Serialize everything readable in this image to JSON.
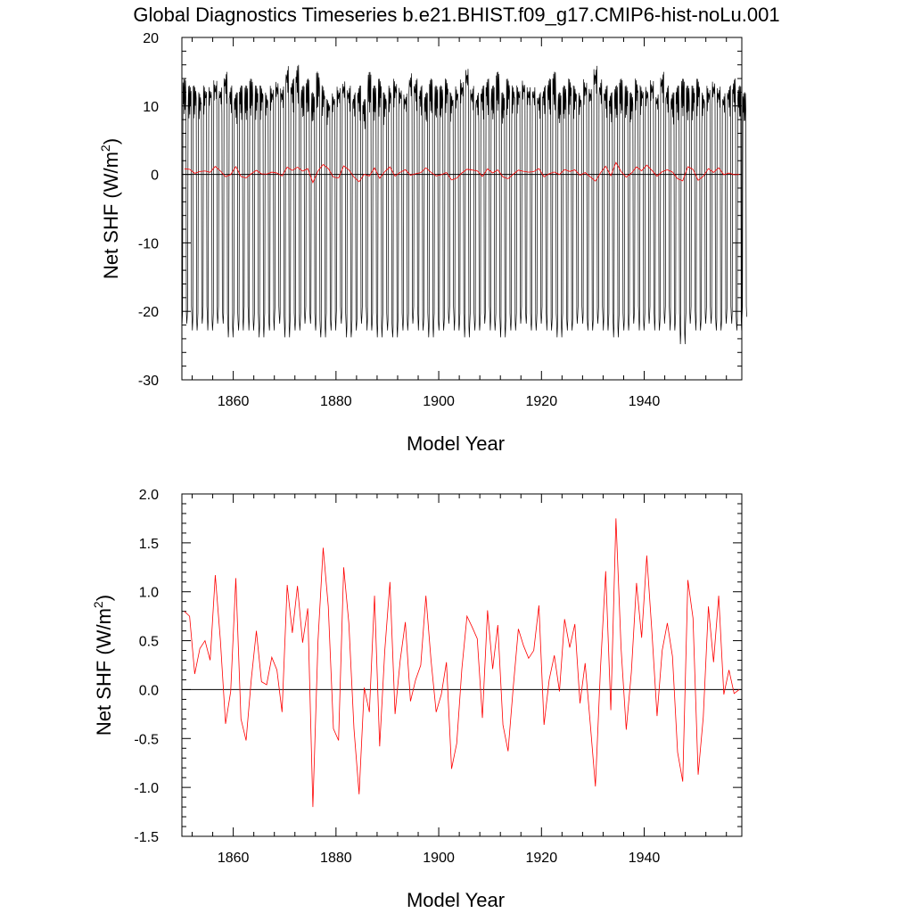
{
  "title": "Global Diagnostics Timeseries b.e21.BHIST.f09_g17.CMIP6-hist-noLu.001",
  "chart_data": [
    {
      "type": "line",
      "xlabel": "Model Year",
      "ylabel": "Net SHF (W/m²)",
      "xlim": [
        1850,
        1959
      ],
      "ylim": [
        -30,
        20
      ],
      "xticks": [
        "1860",
        "1880",
        "1900",
        "1920",
        "1940"
      ],
      "yticks": [
        "-30",
        "-20",
        "-10",
        "0",
        "10",
        "20"
      ],
      "reference_line": 0,
      "series": [
        {
          "color": "#000000",
          "description_values": "monthly values (12 per year), annual range approx -25 to 16",
          "monthly_annual_max": [
            14,
            13,
            13,
            12,
            13,
            13,
            14,
            13,
            15,
            13,
            12,
            13,
            13,
            14,
            13,
            13,
            12,
            13,
            14,
            13,
            16,
            14,
            16,
            13,
            14,
            12,
            15,
            13,
            11,
            12,
            13,
            14,
            13,
            12,
            13,
            11,
            15,
            13,
            14,
            12,
            13,
            14,
            13,
            12,
            15,
            14,
            13,
            12,
            14,
            13,
            13,
            14,
            12,
            13,
            14,
            16,
            13,
            12,
            13,
            14,
            13,
            15,
            12,
            14,
            13,
            13,
            14,
            13,
            13,
            12,
            13,
            14,
            15,
            12,
            13,
            14,
            13,
            12,
            14,
            13,
            16,
            14,
            13,
            12,
            13,
            14,
            13,
            12,
            14,
            13,
            13,
            14,
            12,
            15,
            13,
            12,
            13,
            14,
            13,
            13,
            14,
            12,
            13,
            14,
            13,
            12,
            13,
            14,
            13,
            12
          ],
          "monthly_annual_min": [
            -22,
            -21,
            -23,
            -22,
            -21,
            -23,
            -22,
            -21,
            -22,
            -24,
            -22,
            -23,
            -21,
            -23,
            -22,
            -24,
            -22,
            -23,
            -21,
            -22,
            -24,
            -22,
            -23,
            -22,
            -21,
            -22,
            -23,
            -24,
            -22,
            -23,
            -21,
            -22,
            -24,
            -23,
            -22,
            -21,
            -23,
            -22,
            -24,
            -22,
            -23,
            -24,
            -22,
            -23,
            -22,
            -21,
            -23,
            -22,
            -24,
            -22,
            -23,
            -22,
            -21,
            -23,
            -22,
            -24,
            -22,
            -23,
            -22,
            -21,
            -23,
            -22,
            -24,
            -22,
            -23,
            -22,
            -21,
            -22,
            -23,
            -22,
            -21,
            -23,
            -22,
            -24,
            -22,
            -23,
            -22,
            -21,
            -22,
            -23,
            -22,
            -21,
            -23,
            -22,
            -24,
            -22,
            -23,
            -22,
            -21,
            -23,
            -22,
            -21,
            -23,
            -22,
            -21,
            -23,
            -22,
            -25,
            -22,
            -21,
            -23,
            -22,
            -21,
            -22,
            -23,
            -22,
            -21,
            -22,
            -23,
            -21
          ]
        },
        {
          "color": "#ff0000",
          "description_values": "annual means",
          "values_ref": "annual_mean"
        }
      ]
    },
    {
      "type": "line",
      "xlabel": "Model Year",
      "ylabel": "Net SHF (W/m²)",
      "xlim": [
        1850,
        1959
      ],
      "ylim": [
        -1.5,
        2.0
      ],
      "xticks": [
        "1860",
        "1880",
        "1900",
        "1920",
        "1940"
      ],
      "yticks": [
        "-1.5",
        "-1.0",
        "-0.5",
        "0.0",
        "0.5",
        "1.0",
        "1.5",
        "2.0"
      ],
      "reference_line": 0,
      "series": [
        {
          "color": "#ff0000",
          "x_start": 1850.5,
          "values": [
            0.8,
            0.75,
            0.16,
            0.42,
            0.5,
            0.3,
            1.17,
            0.5,
            -0.35,
            -0.02,
            1.14,
            -0.3,
            -0.52,
            0.1,
            0.6,
            0.08,
            0.05,
            0.33,
            0.2,
            -0.23,
            1.07,
            0.58,
            1.06,
            0.48,
            0.83,
            -1.2,
            0.5,
            1.45,
            0.85,
            -0.4,
            -0.52,
            1.25,
            0.68,
            -0.4,
            -1.07,
            0.02,
            -0.23,
            0.96,
            -0.58,
            0.4,
            1.1,
            -0.25,
            0.3,
            0.69,
            -0.12,
            0.1,
            0.25,
            0.96,
            0.3,
            -0.23,
            -0.05,
            0.28,
            -0.81,
            -0.55,
            0.21,
            0.75,
            0.64,
            0.52,
            -0.29,
            0.81,
            0.21,
            0.66,
            -0.36,
            -0.63,
            0.02,
            0.62,
            0.45,
            0.32,
            0.4,
            0.86,
            -0.36,
            0.1,
            0.35,
            -0.02,
            0.72,
            0.43,
            0.67,
            -0.14,
            0.27,
            -0.35,
            -0.99,
            0.23,
            1.21,
            -0.21,
            1.75,
            0.42,
            -0.41,
            0.18,
            1.09,
            0.53,
            1.37,
            0.59,
            -0.27,
            0.4,
            0.68,
            0.34,
            -0.64,
            -0.94,
            1.12,
            0.73,
            -0.87,
            -0.28,
            0.85,
            0.28,
            0.96,
            -0.05,
            0.2,
            -0.04,
            0.0
          ]
        }
      ]
    }
  ]
}
